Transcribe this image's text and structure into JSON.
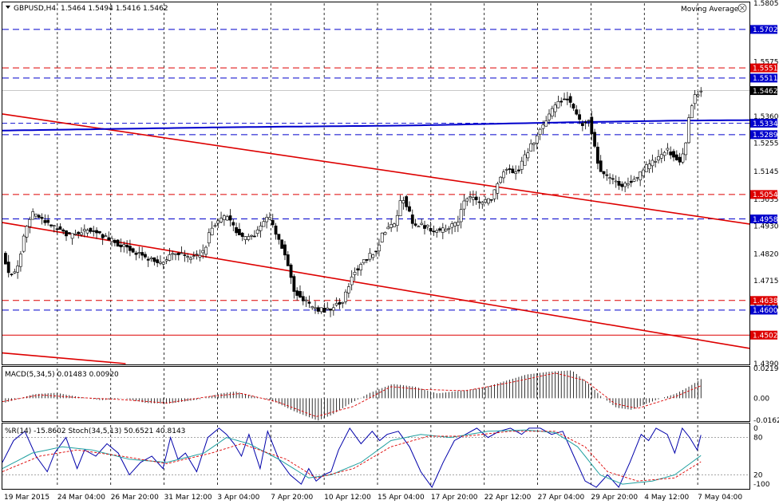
{
  "header": {
    "symbol": "GBPUSD,H4",
    "ohlc": "1.5464 1.5494 1.5416 1.5462",
    "indicator": "Moving Average"
  },
  "chart_data": [
    {
      "type": "candlestick",
      "x_labels": [
        "19 Mar 2015",
        "24 Mar 04:00",
        "26 Mar 20:00",
        "31 Mar 12:00",
        "3 Apr 04:00",
        "7 Apr 20:00",
        "10 Apr 12:00",
        "15 Apr 04:00",
        "17 Apr 20:00",
        "22 Apr 12:00",
        "27 Apr 04:00",
        "29 Apr 20:00",
        "4 May 12:00",
        "7 May 04:00"
      ],
      "y_ticks": [
        "1.5805",
        "1.5575",
        "1.5360",
        "1.5255",
        "1.5145",
        "1.5035",
        "1.4930",
        "1.4820",
        "1.4715",
        "1.4610",
        "1.4390"
      ],
      "ylim": [
        1.439,
        1.5805
      ],
      "levels": [
        {
          "value": 1.5702,
          "label": "1.5702",
          "color": "#0000cc",
          "style": "dash"
        },
        {
          "value": 1.5551,
          "label": "1.5551",
          "color": "#dd0000",
          "style": "dash"
        },
        {
          "value": 1.5511,
          "label": "1.5511",
          "color": "#0000cc",
          "style": "dash"
        },
        {
          "value": 1.5462,
          "label": "1.5462",
          "color": "#000000",
          "style": "current"
        },
        {
          "value": 1.5334,
          "label": "1.5334",
          "color": "#0000cc",
          "style": "ma"
        },
        {
          "value": 1.5289,
          "label": "1.5289",
          "color": "#0000cc",
          "style": "dash"
        },
        {
          "value": 1.5054,
          "label": "1.5054",
          "color": "#dd0000",
          "style": "dash"
        },
        {
          "value": 1.4958,
          "label": "1.4958",
          "color": "#0000cc",
          "style": "dash"
        },
        {
          "value": 1.4638,
          "label": "1.4638",
          "color": "#dd0000",
          "style": "dash"
        },
        {
          "value": 1.46,
          "label": "1.4600",
          "color": "#0000cc",
          "style": "dash"
        },
        {
          "value": 1.4502,
          "label": "1.4502",
          "color": "#dd0000",
          "style": "solid"
        }
      ],
      "trendlines": [
        {
          "from": [
            0,
            1.537
          ],
          "to": [
            1,
            1.4938
          ],
          "color": "#dd0000"
        },
        {
          "from": [
            0,
            1.4944
          ],
          "to": [
            1,
            1.445
          ],
          "color": "#dd0000"
        },
        {
          "from": [
            0,
            1.4432
          ],
          "to": [
            0.165,
            1.439
          ],
          "color": "#dd0000"
        }
      ],
      "moving_average": [
        [
          0,
          1.5305
        ],
        [
          0.3,
          1.5318
        ],
        [
          0.55,
          1.5325
        ],
        [
          0.75,
          1.5337
        ],
        [
          0.9,
          1.5344
        ],
        [
          1,
          1.5346
        ]
      ],
      "price_path": [
        [
          0,
          1.483
        ],
        [
          0.008,
          1.474
        ],
        [
          0.02,
          1.476
        ],
        [
          0.03,
          1.491
        ],
        [
          0.04,
          1.498
        ],
        [
          0.06,
          1.494
        ],
        [
          0.09,
          1.489
        ],
        [
          0.12,
          1.492
        ],
        [
          0.14,
          1.488
        ],
        [
          0.17,
          1.484
        ],
        [
          0.19,
          1.481
        ],
        [
          0.21,
          1.478
        ],
        [
          0.23,
          1.483
        ],
        [
          0.25,
          1.48
        ],
        [
          0.27,
          1.483
        ],
        [
          0.28,
          1.493
        ],
        [
          0.3,
          1.497
        ],
        [
          0.32,
          1.488
        ],
        [
          0.34,
          1.49
        ],
        [
          0.355,
          1.497
        ],
        [
          0.37,
          1.488
        ],
        [
          0.38,
          1.48
        ],
        [
          0.39,
          1.468
        ],
        [
          0.41,
          1.462
        ],
        [
          0.42,
          1.46
        ],
        [
          0.435,
          1.46
        ],
        [
          0.445,
          1.462
        ],
        [
          0.455,
          1.463
        ],
        [
          0.47,
          1.475
        ],
        [
          0.49,
          1.481
        ],
        [
          0.5,
          1.483
        ],
        [
          0.51,
          1.491
        ],
        [
          0.525,
          1.494
        ],
        [
          0.535,
          1.505
        ],
        [
          0.55,
          1.494
        ],
        [
          0.565,
          1.493
        ],
        [
          0.58,
          1.491
        ],
        [
          0.595,
          1.492
        ],
        [
          0.61,
          1.495
        ],
        [
          0.62,
          1.505
        ],
        [
          0.64,
          1.502
        ],
        [
          0.655,
          1.504
        ],
        [
          0.67,
          1.515
        ],
        [
          0.69,
          1.514
        ],
        [
          0.7,
          1.521
        ],
        [
          0.715,
          1.528
        ],
        [
          0.73,
          1.536
        ],
        [
          0.745,
          1.542
        ],
        [
          0.755,
          1.544
        ],
        [
          0.765,
          1.538
        ],
        [
          0.775,
          1.533
        ],
        [
          0.785,
          1.535
        ],
        [
          0.79,
          1.527
        ],
        [
          0.8,
          1.514
        ],
        [
          0.81,
          1.512
        ],
        [
          0.825,
          1.509
        ],
        [
          0.84,
          1.51
        ],
        [
          0.85,
          1.512
        ],
        [
          0.86,
          1.516
        ],
        [
          0.875,
          1.519
        ],
        [
          0.89,
          1.523
        ],
        [
          0.9,
          1.52
        ],
        [
          0.908,
          1.517
        ],
        [
          0.915,
          1.526
        ],
        [
          0.92,
          1.539
        ],
        [
          0.928,
          1.545
        ],
        [
          0.935,
          1.546
        ]
      ]
    },
    {
      "type": "bar",
      "title": "MACD(5,34,5) 0.01483 0.00920",
      "y_ticks": [
        "0.0219",
        "0.00",
        "-0.0162"
      ],
      "ylim": [
        -0.0162,
        0.0219
      ],
      "value_path": [
        [
          0,
          -0.0035
        ],
        [
          0.04,
          0.003
        ],
        [
          0.07,
          0.004
        ],
        [
          0.1,
          0.001
        ],
        [
          0.13,
          -0.0015
        ],
        [
          0.16,
          0.0
        ],
        [
          0.19,
          -0.0035
        ],
        [
          0.22,
          -0.004
        ],
        [
          0.26,
          -0.001
        ],
        [
          0.29,
          0.0035
        ],
        [
          0.31,
          0.005
        ],
        [
          0.33,
          0.002
        ],
        [
          0.36,
          -0.002
        ],
        [
          0.39,
          -0.01
        ],
        [
          0.42,
          -0.0165
        ],
        [
          0.44,
          -0.012
        ],
        [
          0.46,
          -0.005
        ],
        [
          0.49,
          0.004
        ],
        [
          0.52,
          0.0105
        ],
        [
          0.55,
          0.0085
        ],
        [
          0.58,
          0.0035
        ],
        [
          0.61,
          0.0055
        ],
        [
          0.64,
          0.0075
        ],
        [
          0.67,
          0.0125
        ],
        [
          0.7,
          0.0175
        ],
        [
          0.73,
          0.0195
        ],
        [
          0.76,
          0.0205
        ],
        [
          0.78,
          0.012
        ],
        [
          0.8,
          0.001
        ],
        [
          0.82,
          -0.007
        ],
        [
          0.84,
          -0.0085
        ],
        [
          0.86,
          -0.004
        ],
        [
          0.88,
          0.0
        ],
        [
          0.9,
          0.0035
        ],
        [
          0.92,
          0.0095
        ],
        [
          0.935,
          0.0148
        ]
      ],
      "signal_path": [
        [
          0,
          -0.0025
        ],
        [
          0.05,
          0.0025
        ],
        [
          0.1,
          0.0005
        ],
        [
          0.16,
          -0.001
        ],
        [
          0.22,
          -0.0035
        ],
        [
          0.28,
          0.0015
        ],
        [
          0.32,
          0.0035
        ],
        [
          0.37,
          -0.003
        ],
        [
          0.42,
          -0.0135
        ],
        [
          0.47,
          -0.006
        ],
        [
          0.52,
          0.0085
        ],
        [
          0.56,
          0.0065
        ],
        [
          0.62,
          0.0055
        ],
        [
          0.68,
          0.0115
        ],
        [
          0.74,
          0.0185
        ],
        [
          0.78,
          0.013
        ],
        [
          0.82,
          -0.004
        ],
        [
          0.85,
          -0.0075
        ],
        [
          0.9,
          0.001
        ],
        [
          0.935,
          0.0092
        ]
      ]
    },
    {
      "type": "line",
      "title": "%R(14) -15.8602 Stoch(34,5,13) 50.6521 40.8143",
      "y_ticks": [
        "0",
        "-100"
      ],
      "stoch_ticks": [
        "20",
        "80"
      ],
      "ylim": [
        -100,
        0
      ],
      "wpr_path": [
        [
          0,
          -60
        ],
        [
          0.015,
          -25
        ],
        [
          0.03,
          -10
        ],
        [
          0.045,
          -50
        ],
        [
          0.06,
          -75
        ],
        [
          0.07,
          -45
        ],
        [
          0.085,
          -20
        ],
        [
          0.1,
          -70
        ],
        [
          0.11,
          -40
        ],
        [
          0.125,
          -50
        ],
        [
          0.14,
          -30
        ],
        [
          0.155,
          -45
        ],
        [
          0.17,
          -80
        ],
        [
          0.185,
          -60
        ],
        [
          0.2,
          -50
        ],
        [
          0.215,
          -70
        ],
        [
          0.225,
          -20
        ],
        [
          0.235,
          -55
        ],
        [
          0.245,
          -45
        ],
        [
          0.26,
          -75
        ],
        [
          0.275,
          -20
        ],
        [
          0.29,
          -5
        ],
        [
          0.3,
          -15
        ],
        [
          0.31,
          -30
        ],
        [
          0.32,
          -50
        ],
        [
          0.33,
          -15
        ],
        [
          0.345,
          -70
        ],
        [
          0.355,
          -10
        ],
        [
          0.37,
          -55
        ],
        [
          0.385,
          -80
        ],
        [
          0.4,
          -95
        ],
        [
          0.41,
          -70
        ],
        [
          0.42,
          -90
        ],
        [
          0.43,
          -80
        ],
        [
          0.44,
          -75
        ],
        [
          0.45,
          -40
        ],
        [
          0.465,
          -5
        ],
        [
          0.48,
          -30
        ],
        [
          0.495,
          -10
        ],
        [
          0.505,
          -25
        ],
        [
          0.515,
          -15
        ],
        [
          0.53,
          -10
        ],
        [
          0.545,
          -35
        ],
        [
          0.56,
          -75
        ],
        [
          0.575,
          -100
        ],
        [
          0.59,
          -60
        ],
        [
          0.605,
          -25
        ],
        [
          0.62,
          -15
        ],
        [
          0.635,
          -5
        ],
        [
          0.65,
          -20
        ],
        [
          0.665,
          -10
        ],
        [
          0.68,
          -5
        ],
        [
          0.695,
          -15
        ],
        [
          0.705,
          -5
        ],
        [
          0.72,
          -5
        ],
        [
          0.735,
          -15
        ],
        [
          0.75,
          -10
        ],
        [
          0.765,
          -50
        ],
        [
          0.78,
          -90
        ],
        [
          0.795,
          -100
        ],
        [
          0.81,
          -80
        ],
        [
          0.825,
          -100
        ],
        [
          0.84,
          -60
        ],
        [
          0.855,
          -15
        ],
        [
          0.865,
          -25
        ],
        [
          0.875,
          -5
        ],
        [
          0.89,
          -15
        ],
        [
          0.9,
          -45
        ],
        [
          0.91,
          -5
        ],
        [
          0.92,
          -20
        ],
        [
          0.93,
          -40
        ],
        [
          0.935,
          -16
        ]
      ],
      "main_path": [
        [
          0,
          -70
        ],
        [
          0.04,
          -45
        ],
        [
          0.08,
          -35
        ],
        [
          0.12,
          -40
        ],
        [
          0.17,
          -55
        ],
        [
          0.22,
          -60
        ],
        [
          0.27,
          -45
        ],
        [
          0.3,
          -20
        ],
        [
          0.33,
          -30
        ],
        [
          0.37,
          -55
        ],
        [
          0.41,
          -85
        ],
        [
          0.44,
          -80
        ],
        [
          0.48,
          -60
        ],
        [
          0.52,
          -25
        ],
        [
          0.56,
          -15
        ],
        [
          0.6,
          -20
        ],
        [
          0.65,
          -10
        ],
        [
          0.7,
          -8
        ],
        [
          0.74,
          -12
        ],
        [
          0.77,
          -35
        ],
        [
          0.8,
          -80
        ],
        [
          0.83,
          -95
        ],
        [
          0.87,
          -90
        ],
        [
          0.9,
          -80
        ],
        [
          0.935,
          -49
        ]
      ],
      "signal_path": [
        [
          0,
          -75
        ],
        [
          0.05,
          -50
        ],
        [
          0.1,
          -40
        ],
        [
          0.16,
          -50
        ],
        [
          0.22,
          -62
        ],
        [
          0.28,
          -45
        ],
        [
          0.32,
          -30
        ],
        [
          0.38,
          -55
        ],
        [
          0.42,
          -85
        ],
        [
          0.47,
          -70
        ],
        [
          0.52,
          -35
        ],
        [
          0.57,
          -18
        ],
        [
          0.62,
          -18
        ],
        [
          0.68,
          -10
        ],
        [
          0.74,
          -10
        ],
        [
          0.78,
          -35
        ],
        [
          0.81,
          -75
        ],
        [
          0.85,
          -90
        ],
        [
          0.9,
          -85
        ],
        [
          0.935,
          -59
        ]
      ]
    }
  ]
}
